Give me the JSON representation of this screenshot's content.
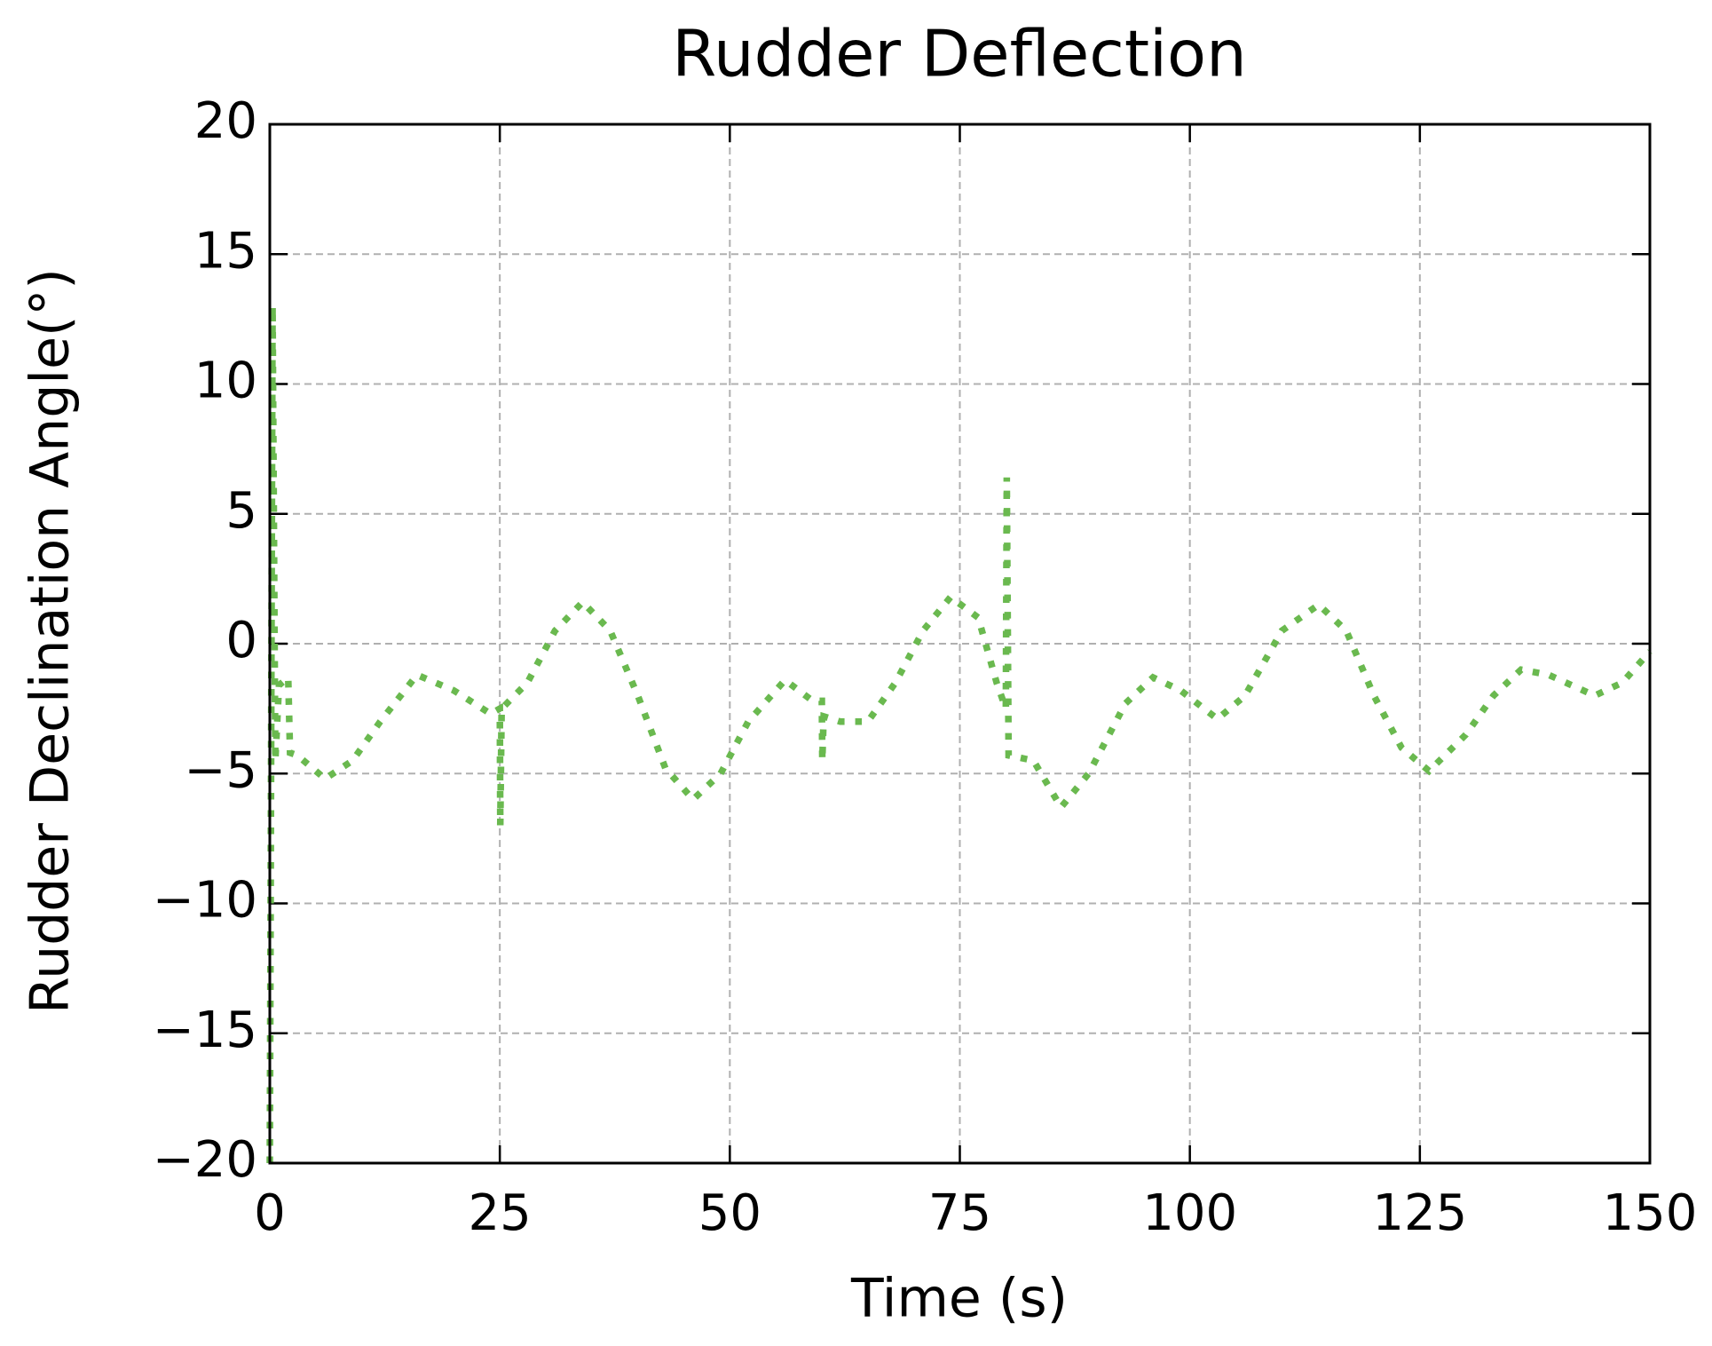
{
  "chart_data": {
    "type": "line",
    "title": "Rudder Deflection",
    "xlabel": "Time (s)",
    "ylabel": "Rudder Declination Angle(°)",
    "xlim": [
      0,
      150
    ],
    "ylim": [
      -20,
      20
    ],
    "xticks": [
      0,
      25,
      50,
      75,
      100,
      125,
      150
    ],
    "yticks": [
      {
        "value": -20,
        "label": "−20"
      },
      {
        "value": -15,
        "label": "−15"
      },
      {
        "value": -10,
        "label": "−10"
      },
      {
        "value": -5,
        "label": "−5"
      },
      0,
      5,
      10,
      15,
      20
    ],
    "grid": true,
    "series": [
      {
        "color": "#6ab94f",
        "x": [
          0,
          0.3,
          0.6,
          1,
          2,
          2.2,
          3,
          6,
          9,
          12,
          16,
          20,
          24,
          25,
          25.05,
          25.2,
          28,
          31,
          34,
          37,
          40,
          43,
          46,
          49,
          52,
          56,
          59,
          60,
          60.05,
          60.2,
          62,
          65,
          68,
          71,
          74,
          77,
          79,
          80,
          80.1,
          80.3,
          83,
          86,
          89,
          93,
          96,
          99,
          103,
          106,
          110,
          114,
          117,
          120,
          123,
          126,
          130,
          133,
          136,
          139,
          144,
          147,
          150
        ],
        "values": [
          -20,
          13,
          -4.5,
          -1.6,
          -1.3,
          -4.2,
          -4.3,
          -5.2,
          -4.5,
          -3,
          -1.2,
          -1.8,
          -2.7,
          -2.5,
          -7,
          -2.5,
          -1.5,
          0.5,
          1.6,
          0.5,
          -2,
          -4.8,
          -6,
          -5,
          -3,
          -1.4,
          -2.2,
          -2.2,
          -4.5,
          -2.8,
          -3,
          -3,
          -1.5,
          0.5,
          1.8,
          1,
          -1.5,
          -2.5,
          6.4,
          -4.3,
          -4.5,
          -6.3,
          -5,
          -2.3,
          -1.3,
          -1.8,
          -2.9,
          -2,
          0.5,
          1.5,
          0.5,
          -2,
          -4,
          -4.9,
          -3.5,
          -2,
          -1,
          -1.2,
          -2,
          -1.5,
          -0.3
        ]
      }
    ]
  }
}
